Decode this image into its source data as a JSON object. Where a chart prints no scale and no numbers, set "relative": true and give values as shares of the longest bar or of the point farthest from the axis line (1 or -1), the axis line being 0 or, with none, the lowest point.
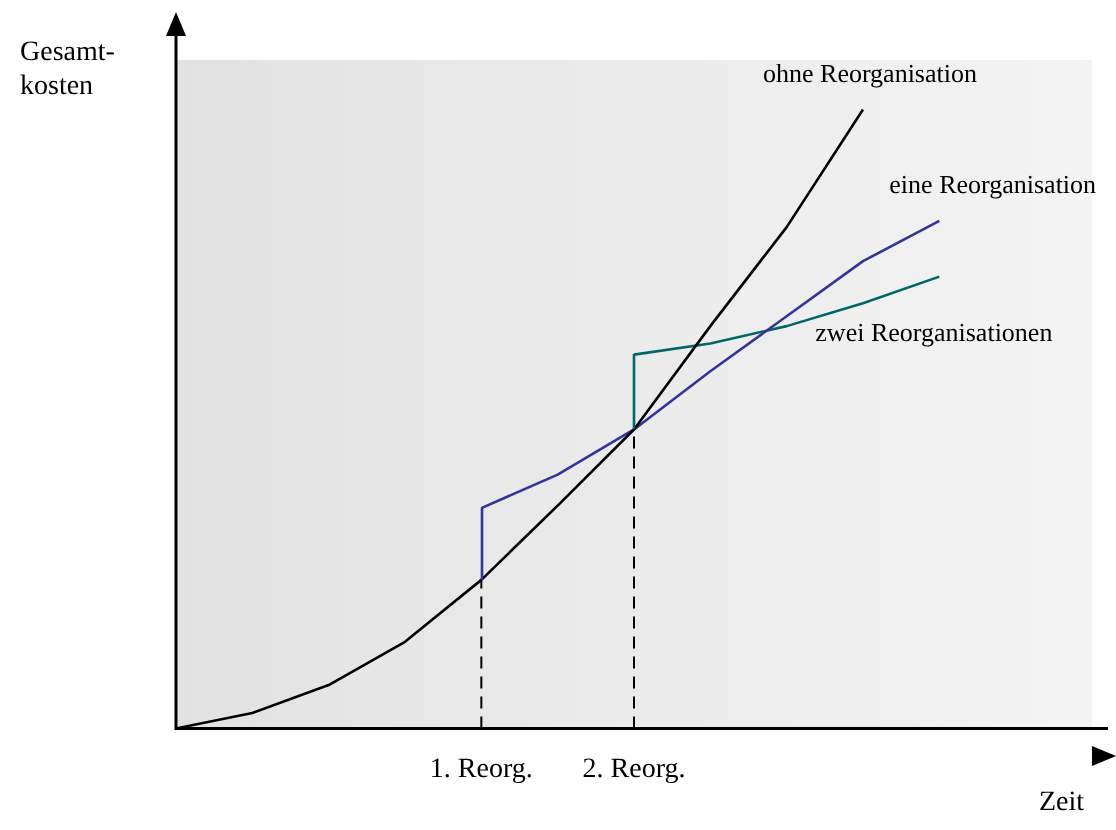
{
  "chart_data": {
    "type": "line",
    "relative": true,
    "xlabel": "Zeit",
    "ylabel": "Gesamt-\nkosten",
    "categories": [
      null,
      null,
      null,
      null,
      "1. Reorg.",
      null,
      "2. Reorg.",
      null,
      null,
      null,
      null,
      null,
      null
    ],
    "grid": false,
    "legend": false,
    "marker": "none",
    "line_style": "solid",
    "series": [
      {
        "name": "ohne Reorganisation",
        "color": "#000000",
        "values": [
          0,
          0.025,
          0.07,
          0.14,
          0.24,
          0.36,
          0.483,
          0.65,
          0.81,
          1,
          null,
          null,
          null
        ]
      },
      {
        "name": "eine Reorganisation",
        "color": "#333399",
        "values": [
          null,
          null,
          null,
          null,
          0.356,
          0.41,
          0.483,
          0.577,
          0.666,
          0.755,
          0.82,
          null,
          null
        ]
      },
      {
        "name": "zwei Reorganisationen",
        "color": "#006666",
        "values": [
          null,
          null,
          null,
          null,
          null,
          null,
          0.604,
          0.622,
          0.65,
          0.687,
          0.73,
          null,
          null
        ]
      }
    ],
    "ref_lines": [
      {
        "axis": "x",
        "value": "1. Reorg.",
        "line_style": "dashed"
      },
      {
        "axis": "x",
        "value": "2. Reorg.",
        "line_style": "dashed"
      }
    ]
  }
}
